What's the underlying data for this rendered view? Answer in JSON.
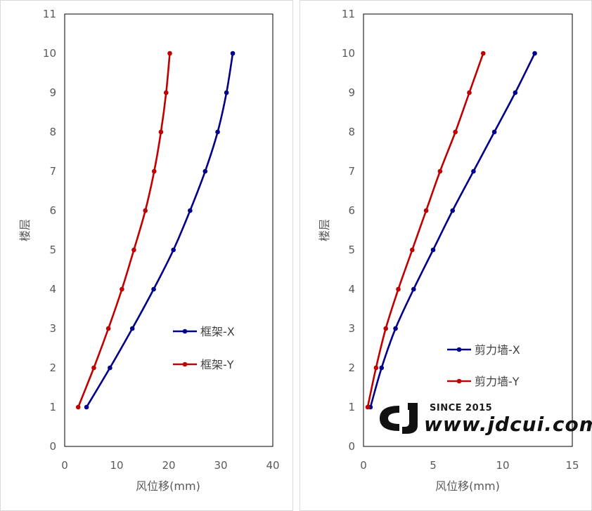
{
  "chart_data": [
    {
      "type": "line",
      "xlabel": "风位移(mm)",
      "ylabel": "楼层",
      "xlim": [
        0,
        40
      ],
      "ylim": [
        0,
        11
      ],
      "xticks": [
        0,
        10,
        20,
        30,
        40
      ],
      "yticks": [
        0,
        1,
        2,
        3,
        4,
        5,
        6,
        7,
        8,
        9,
        10,
        11
      ],
      "grid": false,
      "legend": "right-center",
      "series": [
        {
          "name": "框架-X",
          "color": "#00008B",
          "x": [
            4.2,
            8.7,
            13.0,
            17.1,
            20.9,
            24.1,
            27.0,
            29.4,
            31.1,
            32.3
          ],
          "y": [
            1,
            2,
            3,
            4,
            5,
            6,
            7,
            8,
            9,
            10
          ]
        },
        {
          "name": "框架-Y",
          "color": "#C00000",
          "x": [
            2.6,
            5.6,
            8.4,
            11.0,
            13.3,
            15.5,
            17.2,
            18.5,
            19.5,
            20.2
          ],
          "y": [
            1,
            2,
            3,
            4,
            5,
            6,
            7,
            8,
            9,
            10
          ]
        }
      ]
    },
    {
      "type": "line",
      "xlabel": "风位移(mm)",
      "ylabel": "楼层",
      "xlim": [
        0,
        15
      ],
      "ylim": [
        0,
        11
      ],
      "xticks": [
        0,
        5,
        10,
        15
      ],
      "yticks": [
        0,
        1,
        2,
        3,
        4,
        5,
        6,
        7,
        8,
        9,
        10,
        11
      ],
      "grid": false,
      "legend": "right-center",
      "series": [
        {
          "name": "剪力墙-X",
          "color": "#00008B",
          "x": [
            0.5,
            1.3,
            2.3,
            3.6,
            5.0,
            6.4,
            7.9,
            9.4,
            10.9,
            12.3
          ],
          "y": [
            1,
            2,
            3,
            4,
            5,
            6,
            7,
            8,
            9,
            10
          ]
        },
        {
          "name": "剪力墙-Y",
          "color": "#C00000",
          "x": [
            0.3,
            0.9,
            1.6,
            2.5,
            3.5,
            4.5,
            5.5,
            6.6,
            7.6,
            8.6
          ],
          "y": [
            1,
            2,
            3,
            4,
            5,
            6,
            7,
            8,
            9,
            10
          ]
        }
      ]
    }
  ],
  "watermark": {
    "logo": "CJ",
    "since": "SINCE 2015",
    "url": "www.jdcui.com"
  }
}
